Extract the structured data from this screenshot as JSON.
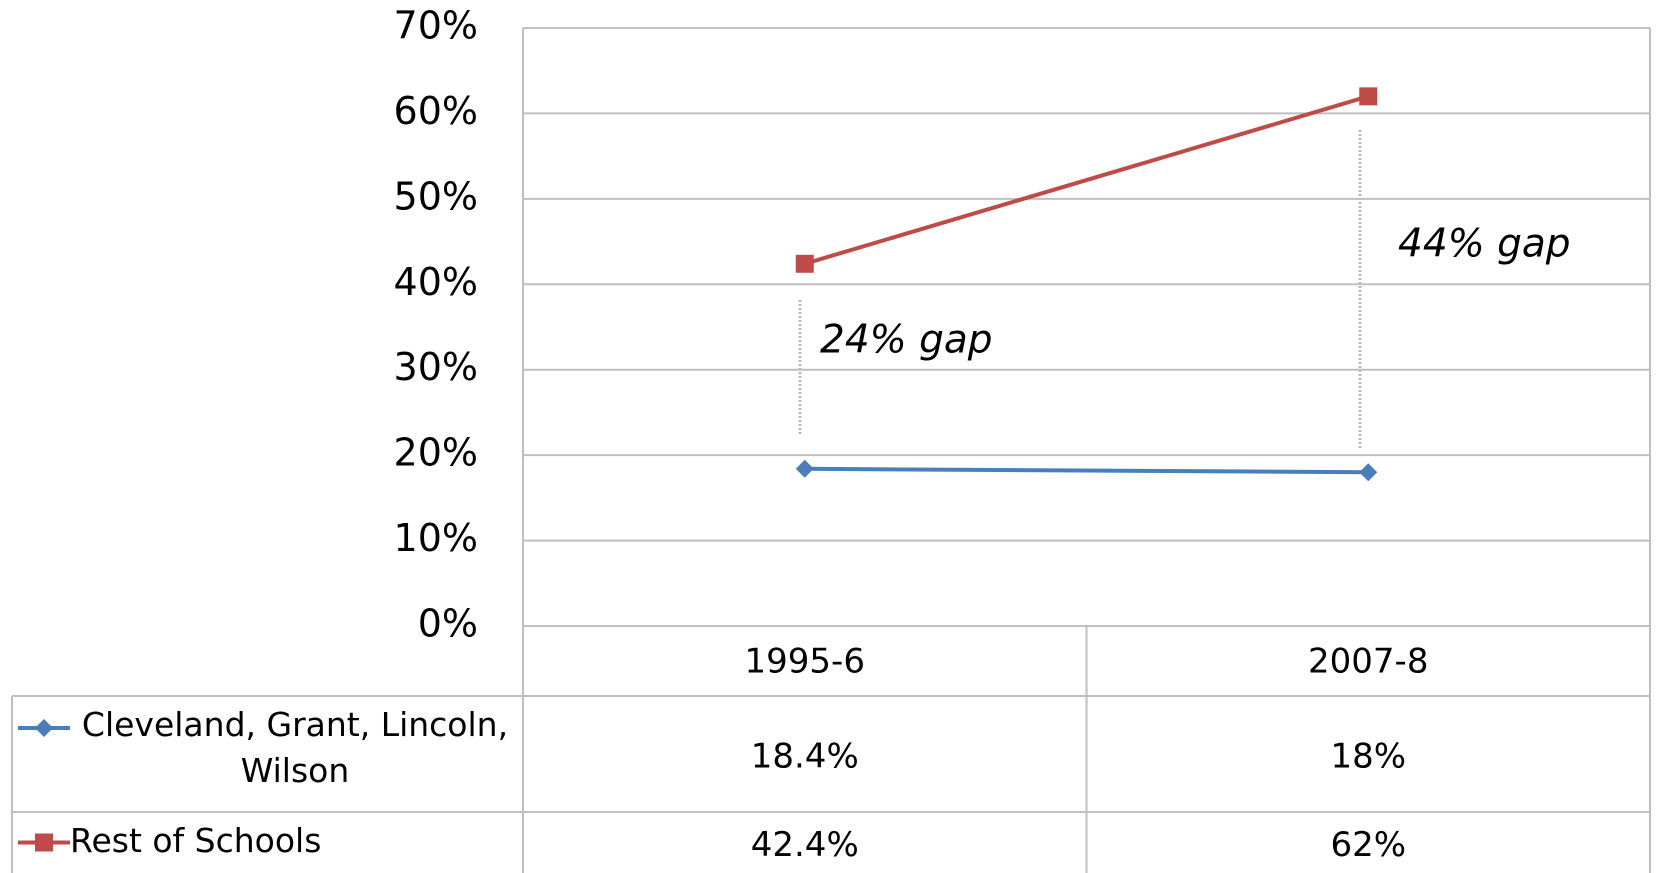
{
  "chart_data": {
    "type": "line",
    "categories": [
      "1995-6",
      "2007-8"
    ],
    "series": [
      {
        "name": "Cleveland, Grant, Lincoln, Wilson",
        "color": "#4a7ebb",
        "marker": "diamond",
        "values": [
          18.4,
          18
        ],
        "value_labels": [
          "18.4%",
          "18%"
        ]
      },
      {
        "name": "Rest of Schools",
        "color": "#be4b48",
        "marker": "square",
        "values": [
          42.4,
          62
        ],
        "value_labels": [
          "42.4%",
          "62%"
        ]
      }
    ],
    "ylim": [
      0,
      70
    ],
    "yticks": [
      {
        "value": 0,
        "label": "0%"
      },
      {
        "value": 10,
        "label": "10%"
      },
      {
        "value": 20,
        "label": "20%"
      },
      {
        "value": 30,
        "label": "30%"
      },
      {
        "value": 40,
        "label": "40%"
      },
      {
        "value": 50,
        "label": "50%"
      },
      {
        "value": 60,
        "label": "60%"
      },
      {
        "value": 70,
        "label": "70%"
      }
    ],
    "grid": true,
    "annotations": [
      "24% gap",
      "44% gap"
    ]
  }
}
